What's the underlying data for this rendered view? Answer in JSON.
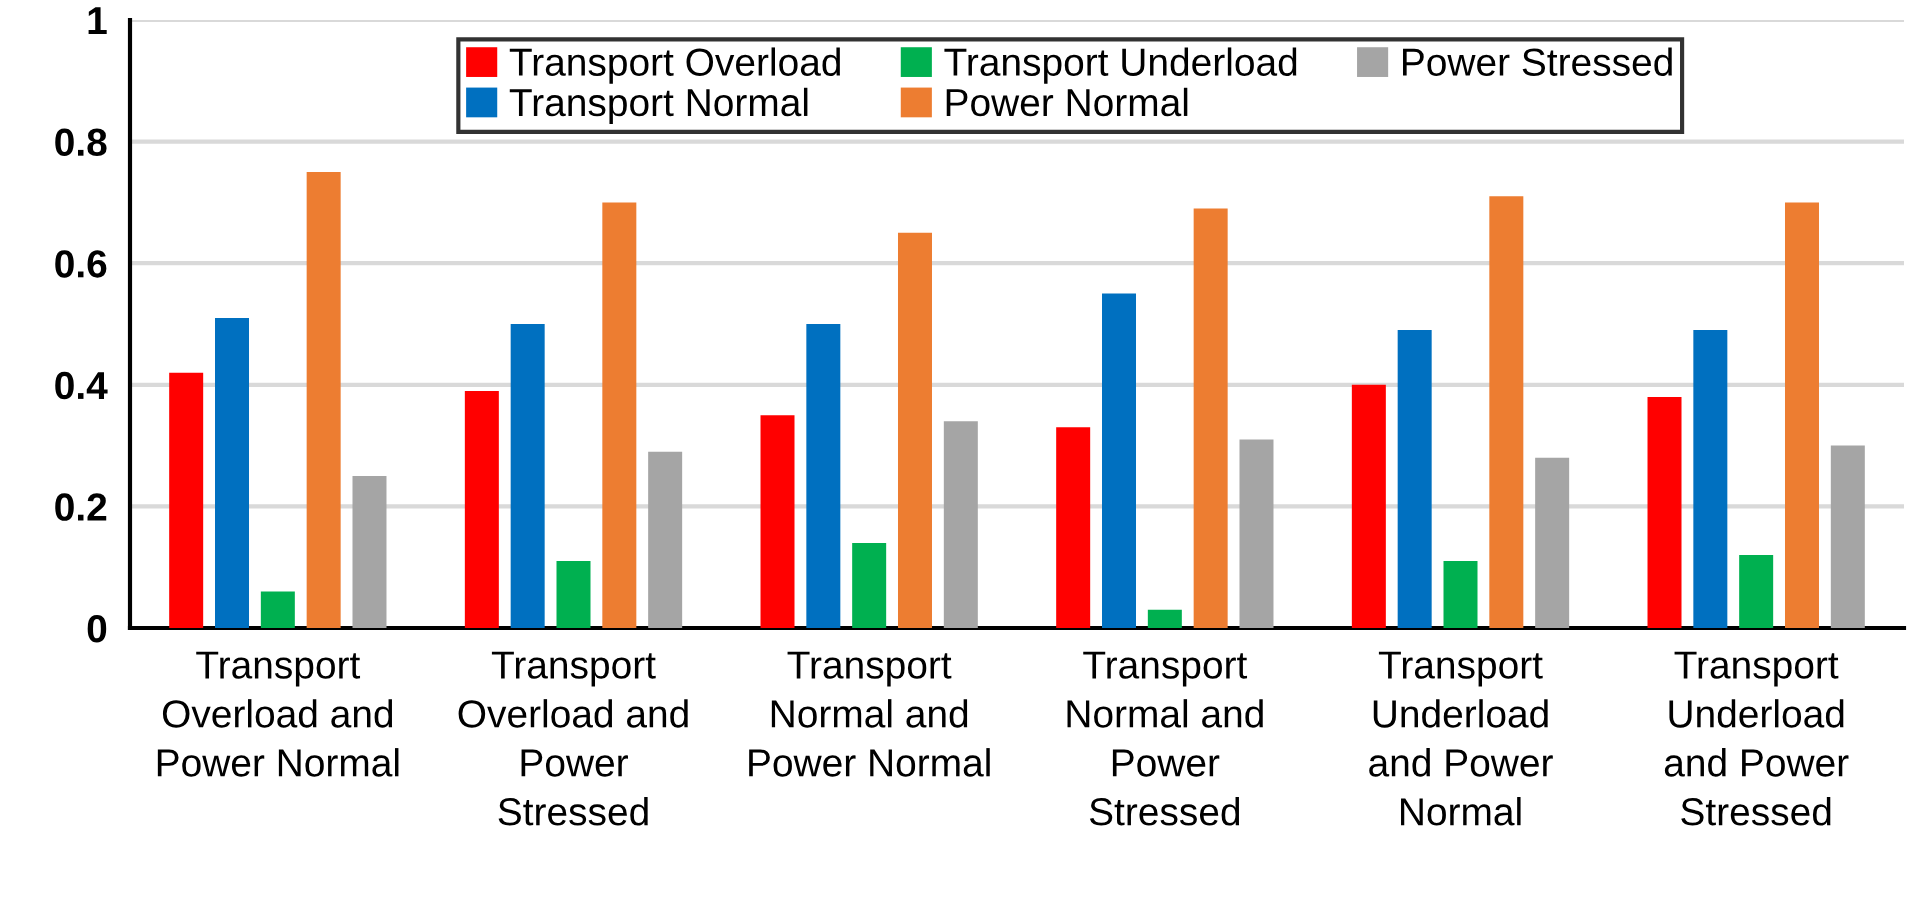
{
  "chart_data": {
    "type": "bar",
    "categories": [
      "Transport\nOverload and\nPower Normal",
      "Transport\nOverload and\nPower\nStressed",
      "Transport\nNormal and\nPower Normal",
      "Transport\nNormal and\nPower\nStressed",
      "Transport\nUnderload\nand Power\nNormal",
      "Transport\nUnderload\nand Power\nStressed"
    ],
    "series": [
      {
        "name": "Transport Overload",
        "color": "#ff0000",
        "values": [
          0.42,
          0.39,
          0.35,
          0.33,
          0.4,
          0.38
        ]
      },
      {
        "name": "Transport Normal",
        "color": "#0070c0",
        "values": [
          0.51,
          0.5,
          0.5,
          0.55,
          0.49,
          0.49
        ]
      },
      {
        "name": "Transport Underload",
        "color": "#00b050",
        "values": [
          0.06,
          0.11,
          0.14,
          0.03,
          0.11,
          0.12
        ]
      },
      {
        "name": "Power Normal",
        "color": "#ed7d31",
        "values": [
          0.75,
          0.7,
          0.65,
          0.69,
          0.71,
          0.7
        ]
      },
      {
        "name": "Power Stressed",
        "color": "#a5a5a5",
        "values": [
          0.25,
          0.29,
          0.34,
          0.31,
          0.28,
          0.3
        ]
      }
    ],
    "ylim": [
      0,
      1
    ],
    "yticks": [
      0,
      0.2,
      0.4,
      0.6,
      0.8,
      1
    ],
    "grid": "y",
    "legend": "top"
  }
}
